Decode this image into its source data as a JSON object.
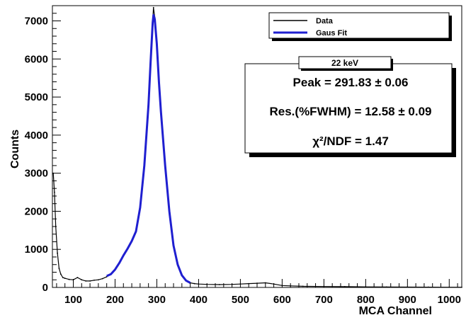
{
  "chart_data": {
    "type": "line",
    "xlabel": "MCA Channel",
    "ylabel": "Counts",
    "xlim": [
      50,
      1030
    ],
    "ylim": [
      0,
      7400
    ],
    "x_ticks": [
      100,
      200,
      300,
      400,
      500,
      600,
      700,
      800,
      900,
      1000
    ],
    "y_ticks": [
      0,
      1000,
      2000,
      3000,
      4000,
      5000,
      6000,
      7000
    ],
    "legend": {
      "placement": "top-right",
      "entries": [
        {
          "name": "Data",
          "color": "#000000"
        },
        {
          "name": "Gaus Fit",
          "color": "#1f1fd0"
        }
      ]
    },
    "series": [
      {
        "name": "Data",
        "color": "#000000",
        "x": [
          52,
          55,
          58,
          62,
          66,
          70,
          75,
          80,
          90,
          100,
          110,
          120,
          130,
          140,
          150,
          160,
          170,
          180,
          190,
          200,
          210,
          220,
          230,
          240,
          250,
          260,
          270,
          280,
          285,
          290,
          292,
          295,
          300,
          305,
          310,
          320,
          330,
          340,
          350,
          360,
          370,
          380,
          390,
          400,
          420,
          450,
          480,
          500,
          520,
          540,
          560,
          580,
          600,
          620,
          650,
          700,
          750,
          800,
          850,
          900,
          950,
          1000,
          1030
        ],
        "values": [
          3000,
          2500,
          1600,
          900,
          500,
          350,
          260,
          240,
          210,
          200,
          260,
          200,
          170,
          170,
          190,
          200,
          230,
          280,
          350,
          480,
          650,
          850,
          1020,
          1220,
          1480,
          2100,
          3200,
          4800,
          5900,
          7000,
          7350,
          7100,
          6400,
          5400,
          4600,
          3200,
          2000,
          1100,
          600,
          320,
          180,
          120,
          100,
          90,
          80,
          75,
          80,
          90,
          100,
          110,
          120,
          90,
          50,
          40,
          30,
          25,
          20,
          15,
          12,
          10,
          8,
          6,
          5
        ]
      },
      {
        "name": "Gaus Fit",
        "color": "#1f1fd0",
        "x": [
          180,
          190,
          200,
          210,
          220,
          230,
          240,
          250,
          260,
          270,
          280,
          285,
          290,
          292,
          295,
          300,
          305,
          310,
          320,
          330,
          340,
          350,
          360,
          370,
          380
        ],
        "values": [
          300,
          350,
          470,
          640,
          840,
          1020,
          1220,
          1470,
          2100,
          3200,
          4800,
          5900,
          6950,
          7150,
          7050,
          6400,
          5400,
          4600,
          3200,
          2000,
          1100,
          600,
          320,
          180,
          120
        ]
      }
    ],
    "stats_box": {
      "title": "22 keV",
      "lines": [
        "Peak = 291.83 ± 0.06",
        "Res.(%FWHM) = 12.58 ± 0.09",
        "χ²/NDF = 1.47"
      ]
    }
  }
}
